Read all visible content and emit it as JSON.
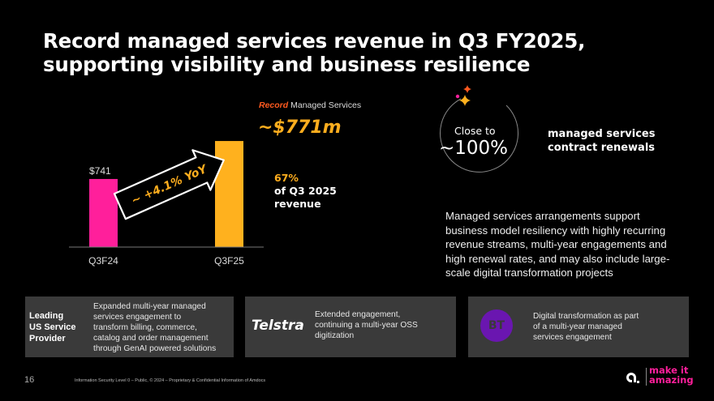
{
  "title": {
    "line1": "Record managed services revenue in Q3 FY2025,",
    "line2": "supporting visibility and business resilience"
  },
  "chart_data": {
    "type": "bar",
    "categories": [
      "Q3F24",
      "Q3F25"
    ],
    "values": [
      741,
      771
    ],
    "colors": [
      "#ff1f9b",
      "#ffb11e"
    ],
    "data_labels": [
      "$741",
      "~$771m"
    ],
    "annotation": "~ +4.1% YoY",
    "title": "",
    "xlabel": "",
    "ylabel": "",
    "ylim": [
      0,
      800
    ]
  },
  "record": {
    "prefix": "Record",
    "suffix": "Managed Services",
    "value": "~$771m",
    "pct": "67%",
    "pct_line2": "of Q3 2025",
    "pct_line3": "revenue"
  },
  "renewals": {
    "close_to": "Close to",
    "value": "~100%",
    "label1": "managed services",
    "label2": "contract renewals"
  },
  "description": {
    "line1": "Managed services arrangements support",
    "line2": "business model resiliency with highly recurring",
    "line3": "revenue streams, multi-year engagements and",
    "line4": "high renewal rates, and may also include large-",
    "line5": "scale digital transformation projects"
  },
  "cards": [
    {
      "label1": "Leading",
      "label2": "US Service",
      "label3": "Provider",
      "text1": "Expanded multi-year managed",
      "text2": "services engagement to",
      "text3": "transform billing, commerce,",
      "text4": "catalog and order  management",
      "text5": "through GenAI powered solutions"
    },
    {
      "logo": "Telstra",
      "text1": "Extended engagement,",
      "text2": "continuing a multi-year OSS",
      "text3": "digitization"
    },
    {
      "logo": "BT",
      "text1": "Digital transformation as part",
      "text2": "of a multi-year managed",
      "text3": "services engagement"
    }
  ],
  "footer": {
    "page": "16",
    "text": "Information Security Level 0 – Public, © 2024 – Proprietary & Confidential Information of Amdocs",
    "brand1": "make it",
    "brand2": "amazing"
  },
  "colors": {
    "pink": "#ff1f9b",
    "orange": "#ffb11e",
    "card_bg": "#3a3a3a",
    "bt_purple": "#6a16b0"
  }
}
